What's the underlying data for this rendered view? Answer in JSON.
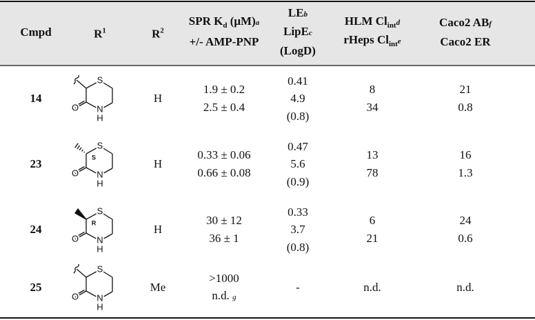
{
  "table": {
    "header": [
      [
        [
          {
            "t": "Cmpd"
          }
        ]
      ],
      [
        [
          {
            "t": "R"
          },
          {
            "sup": "1"
          }
        ]
      ],
      [
        [
          {
            "t": "R"
          },
          {
            "sup": "2"
          }
        ]
      ],
      [
        [
          {
            "t": "SPR K"
          },
          {
            "sub": "d"
          },
          {
            "t": " (μM)"
          },
          {
            "note": "a"
          }
        ],
        [
          {
            "t": "+/- AMP-PNP"
          }
        ]
      ],
      [
        [
          {
            "t": "LE"
          },
          {
            "note": "b"
          }
        ],
        [
          {
            "t": "LipE"
          },
          {
            "note": "c"
          }
        ],
        [
          {
            "t": "(LogD)"
          }
        ]
      ],
      [
        [
          {
            "t": "HLM Cl"
          },
          {
            "sub": "int"
          },
          {
            "note": "d"
          }
        ],
        [
          {
            "t": "rHeps Cl"
          },
          {
            "sub": "int"
          },
          {
            "note": "e"
          }
        ]
      ],
      [
        [
          {
            "t": "Caco2 AB"
          },
          {
            "note": "f"
          }
        ],
        [
          {
            "t": "Caco2 ER"
          }
        ]
      ]
    ],
    "rows": [
      {
        "cmpd": "14",
        "r1": {
          "S": "S",
          "O": "O",
          "N": "N",
          "H": "H"
        },
        "r2": "H",
        "spr": [
          "1.9 ± 0.2",
          "2.5 ± 0.4"
        ],
        "le": [
          "0.41",
          "4.9",
          "(0.8)"
        ],
        "hlm": [
          "8",
          "34"
        ],
        "caco2": [
          "21",
          "0.8"
        ]
      },
      {
        "cmpd": "23",
        "r1": {
          "S": "S",
          "O": "O",
          "N": "N",
          "H": "H",
          "stereo": "S",
          "bond": "hash"
        },
        "r2": "H",
        "spr": [
          "0.33 ± 0.06",
          "0.66 ± 0.08"
        ],
        "le": [
          "0.47",
          "5.6",
          "(0.9)"
        ],
        "hlm": [
          "13",
          "78"
        ],
        "caco2": [
          "16",
          "1.3"
        ]
      },
      {
        "cmpd": "24",
        "r1": {
          "S": "S",
          "O": "O",
          "N": "N",
          "H": "H",
          "stereo": "R",
          "bond": "wedge"
        },
        "r2": "H",
        "spr": [
          "30 ± 12",
          "36 ± 1"
        ],
        "le": [
          "0.33",
          "3.7",
          "(0.8)"
        ],
        "hlm": [
          "6",
          "21"
        ],
        "caco2": [
          "24",
          "0.6"
        ]
      },
      {
        "cmpd": "25",
        "r1": {
          "S": "S",
          "O": "O",
          "N": "N",
          "H": "H"
        },
        "r2": "Me",
        "spr": [
          ">1000",
          [
            {
              "t": "n.d. "
            },
            {
              "note": "g"
            }
          ]
        ],
        "le": [
          "-"
        ],
        "hlm": [
          "n.d."
        ],
        "caco2": [
          "n.d."
        ]
      }
    ]
  }
}
